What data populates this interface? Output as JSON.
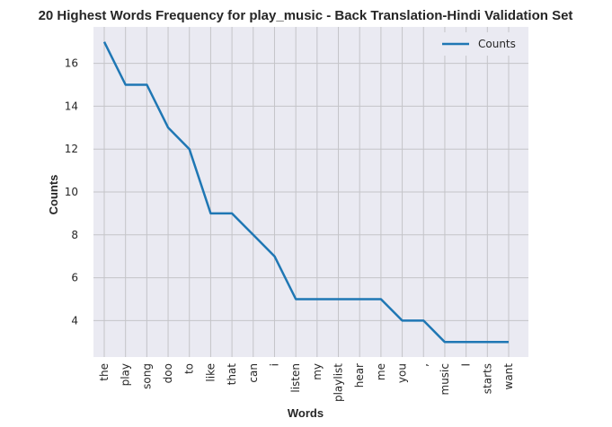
{
  "chart_data": {
    "type": "line",
    "title": "20 Highest Words Frequency for play_music - Back Translation-Hindi Validation Set",
    "xlabel": "Words",
    "ylabel": "Counts",
    "categories": [
      "the",
      "play",
      "song",
      "doo",
      "to",
      "like",
      "that",
      "can",
      "i",
      "listen",
      "my",
      "playlist",
      "hear",
      "me",
      "you",
      ",",
      "music",
      "I",
      "starts",
      "want"
    ],
    "series": [
      {
        "name": "Counts",
        "values": [
          17,
          15,
          15,
          13,
          12,
          9,
          9,
          8,
          7,
          5,
          5,
          5,
          5,
          5,
          4,
          4,
          3,
          3,
          3,
          3
        ]
      }
    ],
    "yticks": [
      "4",
      "6",
      "8",
      "10",
      "12",
      "14",
      "16"
    ],
    "ylim": [
      2.3,
      17.7
    ],
    "grid": true,
    "legend_position": "top-right",
    "colors": {
      "line": "#1f77b4",
      "plot_bg": "#eaeaf2",
      "grid": "#c4c4c8"
    }
  }
}
